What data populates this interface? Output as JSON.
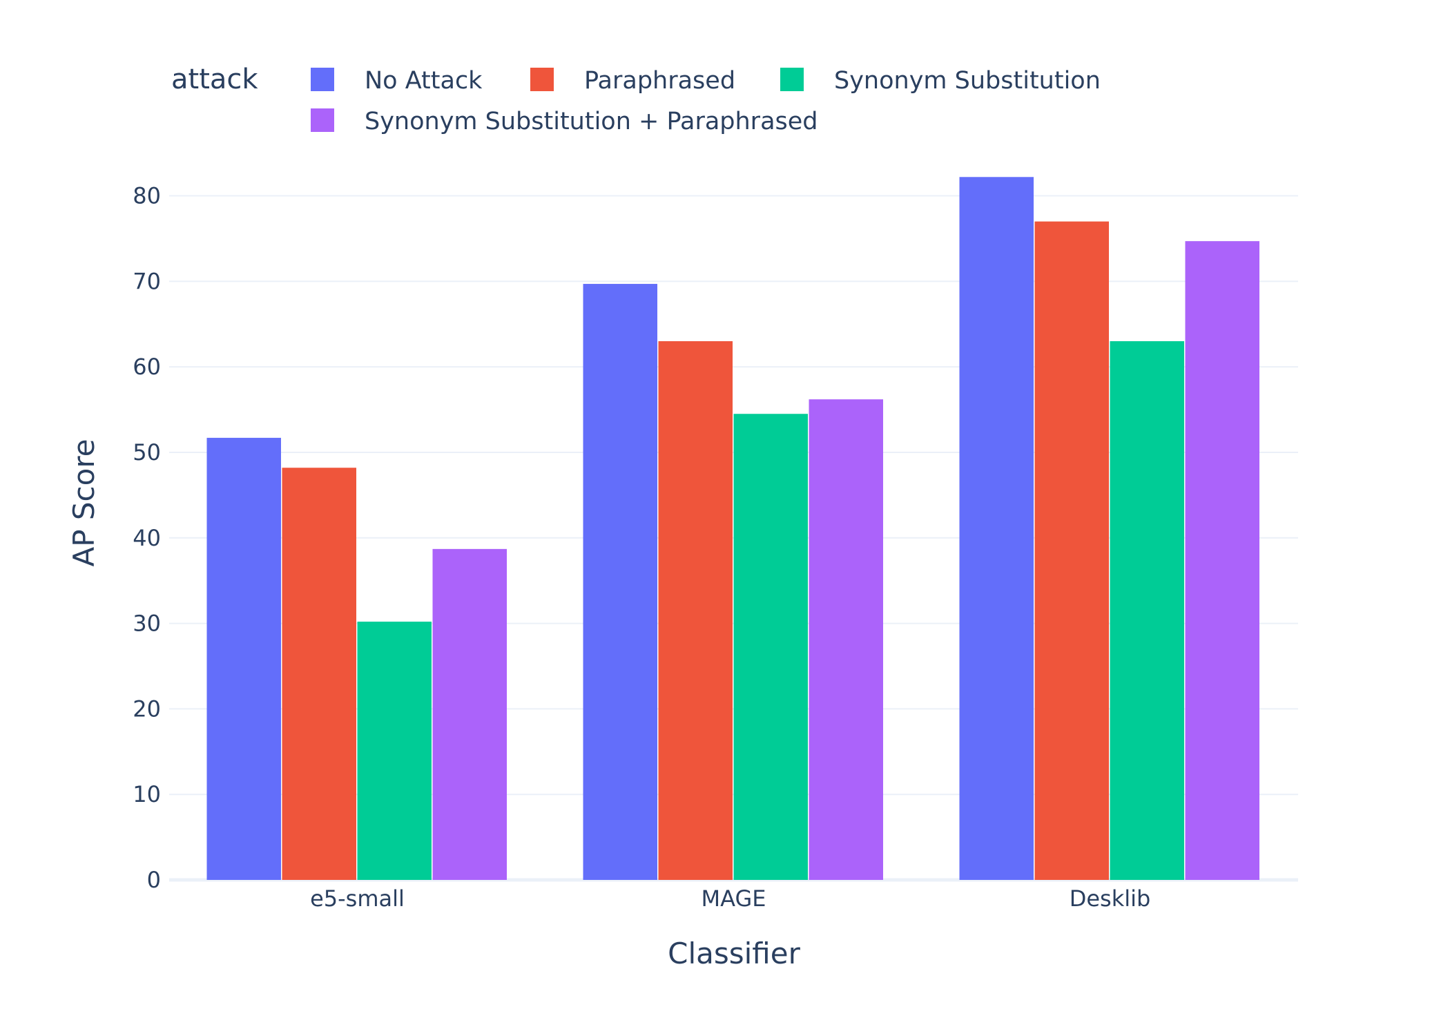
{
  "chart_data": {
    "type": "bar",
    "title": "",
    "xlabel": "Classifier",
    "ylabel": "AP Score",
    "categories": [
      "e5-small",
      "MAGE",
      "Desklib"
    ],
    "ylim": [
      0,
      84
    ],
    "yticks": [
      0,
      10,
      20,
      30,
      40,
      50,
      60,
      70,
      80
    ],
    "grid": true,
    "legend_title": "attack",
    "legend_position": "top",
    "series": [
      {
        "name": "No Attack",
        "color": "#636efa",
        "values": [
          51.7,
          69.7,
          82.2
        ]
      },
      {
        "name": "Paraphrased",
        "color": "#ef553b",
        "values": [
          48.2,
          63.0,
          77.0
        ]
      },
      {
        "name": "Synonym Substitution",
        "color": "#00cc96",
        "values": [
          30.2,
          54.5,
          63.0
        ]
      },
      {
        "name": "Synonym Substitution + Paraphrased",
        "color": "#ab63fa",
        "values": [
          38.7,
          56.2,
          74.7
        ]
      }
    ]
  }
}
